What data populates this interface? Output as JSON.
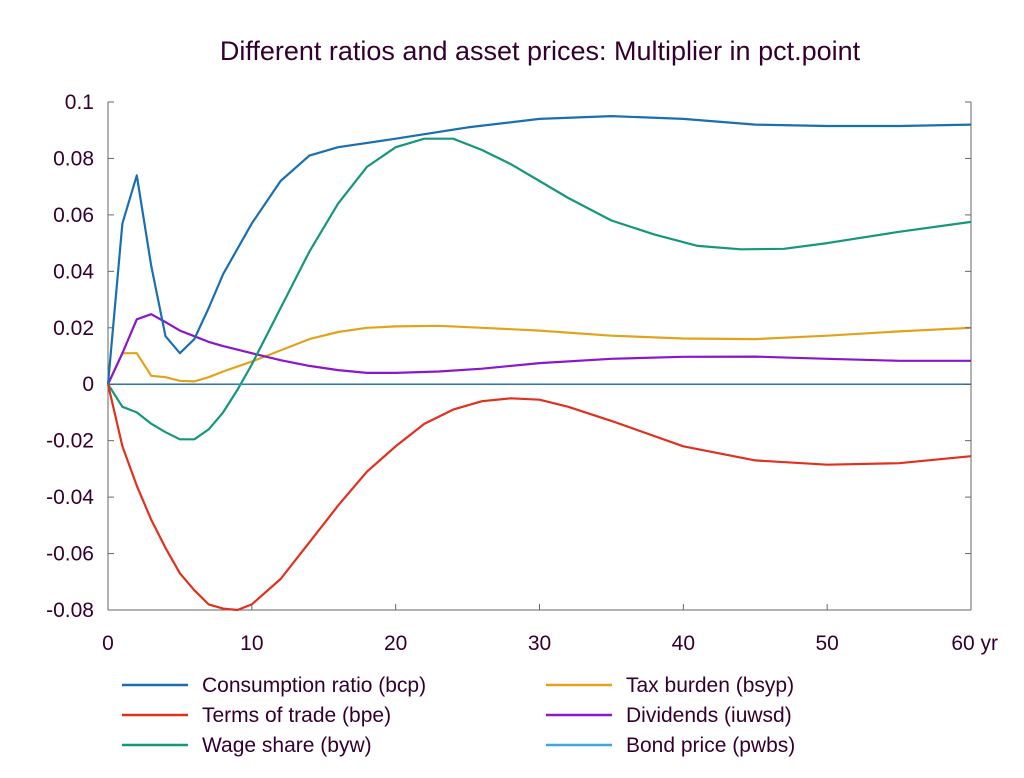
{
  "chart_data": {
    "type": "line",
    "title": "Different ratios and asset prices: Multiplier in pct.point",
    "xlabel": "",
    "ylabel": "",
    "xlim": [
      0,
      60
    ],
    "ylim": [
      -0.08,
      0.1
    ],
    "x_ticks": [
      {
        "value": 0,
        "label": "0"
      },
      {
        "value": 10,
        "label": "10"
      },
      {
        "value": 20,
        "label": "20"
      },
      {
        "value": 30,
        "label": "30"
      },
      {
        "value": 40,
        "label": "40"
      },
      {
        "value": 50,
        "label": "50"
      },
      {
        "value": 60,
        "label": "60 yr"
      }
    ],
    "y_ticks": [
      {
        "value": 0.1,
        "label": "0.1"
      },
      {
        "value": 0.08,
        "label": "0.08"
      },
      {
        "value": 0.06,
        "label": "0.06"
      },
      {
        "value": 0.04,
        "label": "0.04"
      },
      {
        "value": 0.02,
        "label": "0.02"
      },
      {
        "value": 0,
        "label": "0"
      },
      {
        "value": -0.02,
        "label": "-0.02"
      },
      {
        "value": -0.04,
        "label": "-0.04"
      },
      {
        "value": -0.06,
        "label": "-0.06"
      },
      {
        "value": -0.08,
        "label": "-0.08"
      }
    ],
    "grid": false,
    "legend_position": "bottom",
    "series": [
      {
        "name": "Consumption ratio (bcp)",
        "color": "#1a6fb0",
        "points": [
          [
            0,
            0
          ],
          [
            1,
            0.057
          ],
          [
            2,
            0.074
          ],
          [
            3,
            0.042
          ],
          [
            4,
            0.017
          ],
          [
            5,
            0.011
          ],
          [
            6,
            0.016
          ],
          [
            7,
            0.027
          ],
          [
            8,
            0.039
          ],
          [
            10,
            0.057
          ],
          [
            12,
            0.072
          ],
          [
            14,
            0.081
          ],
          [
            16,
            0.084
          ],
          [
            20,
            0.087
          ],
          [
            25,
            0.091
          ],
          [
            30,
            0.094
          ],
          [
            35,
            0.095
          ],
          [
            40,
            0.094
          ],
          [
            45,
            0.092
          ],
          [
            50,
            0.0915
          ],
          [
            55,
            0.0915
          ],
          [
            60,
            0.092
          ]
        ]
      },
      {
        "name": "Terms of trade (bpe)",
        "color": "#e0301e",
        "points": [
          [
            0,
            0
          ],
          [
            1,
            -0.022
          ],
          [
            2,
            -0.036
          ],
          [
            3,
            -0.048
          ],
          [
            4,
            -0.058
          ],
          [
            5,
            -0.067
          ],
          [
            6,
            -0.073
          ],
          [
            7,
            -0.078
          ],
          [
            8,
            -0.0795
          ],
          [
            9,
            -0.08
          ],
          [
            10,
            -0.078
          ],
          [
            12,
            -0.069
          ],
          [
            14,
            -0.056
          ],
          [
            16,
            -0.043
          ],
          [
            18,
            -0.031
          ],
          [
            20,
            -0.022
          ],
          [
            22,
            -0.014
          ],
          [
            24,
            -0.009
          ],
          [
            26,
            -0.006
          ],
          [
            28,
            -0.005
          ],
          [
            30,
            -0.0055
          ],
          [
            32,
            -0.008
          ],
          [
            35,
            -0.013
          ],
          [
            40,
            -0.022
          ],
          [
            45,
            -0.027
          ],
          [
            50,
            -0.0285
          ],
          [
            55,
            -0.028
          ],
          [
            60,
            -0.0255
          ]
        ]
      },
      {
        "name": "Wage share (byw)",
        "color": "#14977a",
        "points": [
          [
            0,
            0
          ],
          [
            1,
            -0.008
          ],
          [
            2,
            -0.01
          ],
          [
            3,
            -0.014
          ],
          [
            4,
            -0.017
          ],
          [
            5,
            -0.0195
          ],
          [
            6,
            -0.0195
          ],
          [
            7,
            -0.016
          ],
          [
            8,
            -0.01
          ],
          [
            9,
            -0.002
          ],
          [
            10,
            0.007
          ],
          [
            12,
            0.027
          ],
          [
            14,
            0.047
          ],
          [
            16,
            0.064
          ],
          [
            18,
            0.077
          ],
          [
            20,
            0.084
          ],
          [
            22,
            0.087
          ],
          [
            24,
            0.087
          ],
          [
            26,
            0.083
          ],
          [
            28,
            0.078
          ],
          [
            30,
            0.072
          ],
          [
            32,
            0.066
          ],
          [
            35,
            0.058
          ],
          [
            38,
            0.053
          ],
          [
            41,
            0.049
          ],
          [
            44,
            0.0478
          ],
          [
            47,
            0.048
          ],
          [
            50,
            0.05
          ],
          [
            55,
            0.054
          ],
          [
            60,
            0.0575
          ]
        ]
      },
      {
        "name": "Tax burden (bsyp)",
        "color": "#e2a31c",
        "points": [
          [
            0,
            0
          ],
          [
            1,
            0.011
          ],
          [
            2,
            0.011
          ],
          [
            3,
            0.003
          ],
          [
            4,
            0.0025
          ],
          [
            5,
            0.0012
          ],
          [
            6,
            0.001
          ],
          [
            7,
            0.0025
          ],
          [
            8,
            0.0045
          ],
          [
            10,
            0.008
          ],
          [
            12,
            0.012
          ],
          [
            14,
            0.016
          ],
          [
            16,
            0.0185
          ],
          [
            18,
            0.02
          ],
          [
            20,
            0.0205
          ],
          [
            23,
            0.0207
          ],
          [
            26,
            0.02
          ],
          [
            30,
            0.019
          ],
          [
            35,
            0.0172
          ],
          [
            40,
            0.0162
          ],
          [
            45,
            0.016
          ],
          [
            50,
            0.0172
          ],
          [
            55,
            0.0187
          ],
          [
            60,
            0.02
          ]
        ]
      },
      {
        "name": "Dividends (iuwsd)",
        "color": "#8a17c9",
        "points": [
          [
            0,
            0
          ],
          [
            1,
            0.011
          ],
          [
            2,
            0.023
          ],
          [
            3,
            0.0248
          ],
          [
            4,
            0.022
          ],
          [
            5,
            0.019
          ],
          [
            6,
            0.017
          ],
          [
            7,
            0.015
          ],
          [
            8,
            0.0135
          ],
          [
            10,
            0.011
          ],
          [
            12,
            0.0085
          ],
          [
            14,
            0.0065
          ],
          [
            16,
            0.005
          ],
          [
            18,
            0.004
          ],
          [
            20,
            0.004
          ],
          [
            23,
            0.0045
          ],
          [
            26,
            0.0055
          ],
          [
            30,
            0.0075
          ],
          [
            35,
            0.009
          ],
          [
            40,
            0.0097
          ],
          [
            45,
            0.0098
          ],
          [
            50,
            0.009
          ],
          [
            55,
            0.0083
          ],
          [
            60,
            0.0083
          ]
        ]
      },
      {
        "name": "Bond price (pwbs)",
        "color": "#3da8e0",
        "points": [
          [
            0,
            0
          ],
          [
            60,
            0
          ]
        ]
      }
    ]
  }
}
